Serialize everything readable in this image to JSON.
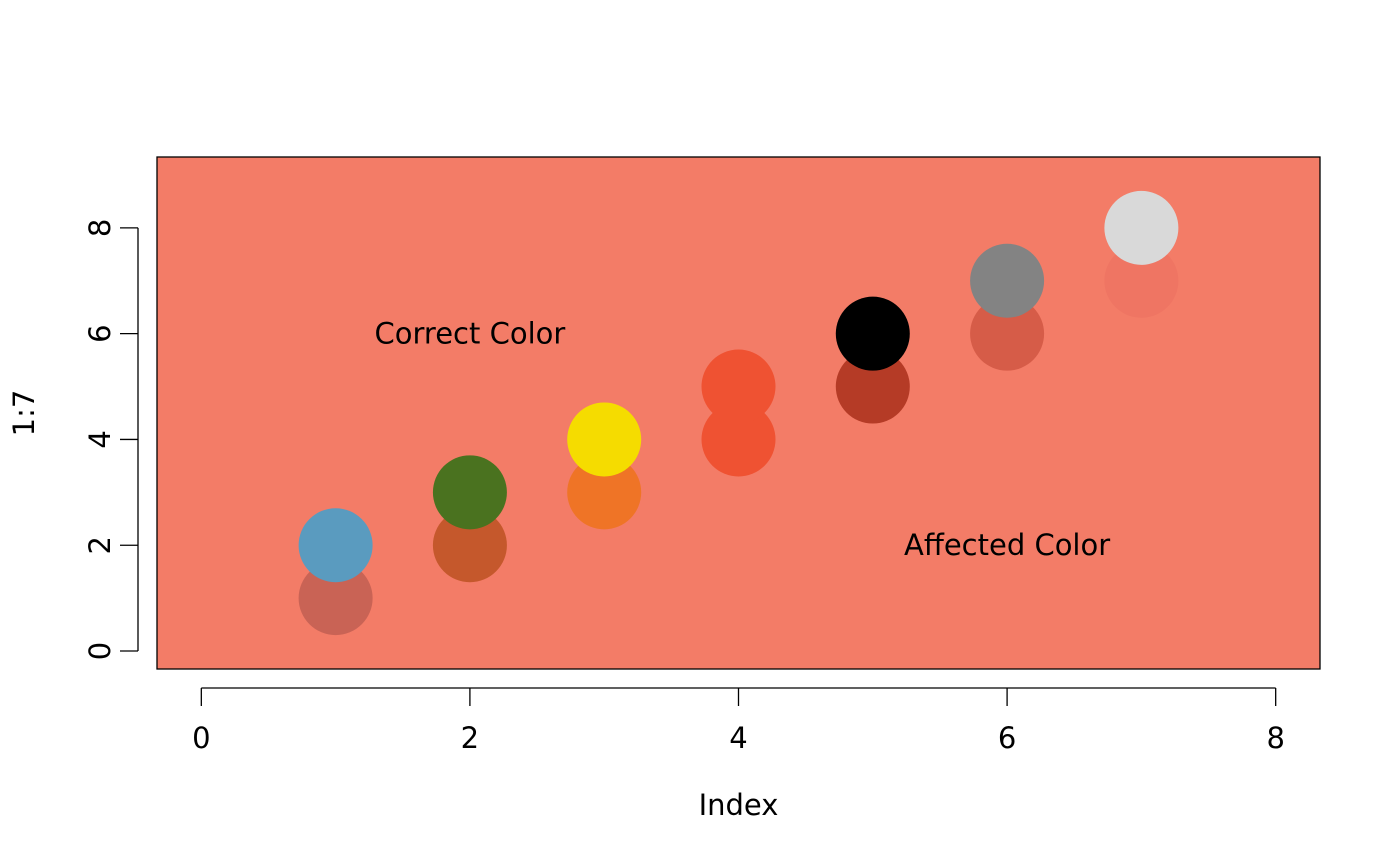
{
  "chart_data": {
    "type": "scatter",
    "xlabel": "Index",
    "ylabel": "1:7",
    "xlim": [
      -0.33,
      8.33
    ],
    "ylim": [
      -0.34,
      9.34
    ],
    "x_ticks": [
      0,
      2,
      4,
      6,
      8
    ],
    "y_ticks": [
      0,
      2,
      4,
      6,
      8
    ],
    "x_tick_labels": [
      "0",
      "2",
      "4",
      "6",
      "8"
    ],
    "y_tick_labels": [
      "0",
      "2",
      "4",
      "6",
      "8"
    ],
    "grid": false,
    "plot_background": "#f37c67",
    "series": [
      {
        "role": "affected",
        "points": [
          {
            "x": 1,
            "y": 1,
            "color": "#c96355"
          },
          {
            "x": 2,
            "y": 2,
            "color": "#c5582c"
          },
          {
            "x": 3,
            "y": 3,
            "color": "#ef7426"
          },
          {
            "x": 4,
            "y": 4,
            "color": "#ef5232"
          },
          {
            "x": 5,
            "y": 5,
            "color": "#b53b26"
          },
          {
            "x": 6,
            "y": 6,
            "color": "#d65c48"
          },
          {
            "x": 7,
            "y": 7,
            "color": "#ef7563"
          }
        ]
      },
      {
        "role": "correct",
        "points": [
          {
            "x": 1,
            "y": 2,
            "color": "#5a9bbf"
          },
          {
            "x": 2,
            "y": 3,
            "color": "#4a721f"
          },
          {
            "x": 3,
            "y": 4,
            "color": "#f5dc00"
          },
          {
            "x": 4,
            "y": 5,
            "color": "#ef5232"
          },
          {
            "x": 5,
            "y": 6,
            "color": "#000000"
          },
          {
            "x": 6,
            "y": 7,
            "color": "#838383"
          },
          {
            "x": 7,
            "y": 8,
            "color": "#d9d9d9"
          }
        ]
      }
    ],
    "annotations": [
      {
        "text": "Correct Color",
        "x": 2,
        "y": 6
      },
      {
        "text": "Affected Color",
        "x": 6,
        "y": 2
      }
    ]
  }
}
